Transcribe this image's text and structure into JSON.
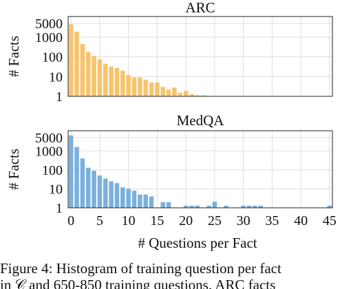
{
  "chart_data": [
    {
      "type": "bar",
      "title": "ARC",
      "ylabel": "# Facts",
      "xlabel": "",
      "yscale": "log",
      "ylim": [
        1,
        5000
      ],
      "yticks": [
        "5000",
        "1000",
        "100",
        "10",
        "1"
      ],
      "xlim": [
        -0.5,
        45.5
      ],
      "grid": true,
      "color": "#f7c46c",
      "x": [
        0,
        1,
        2,
        3,
        4,
        5,
        6,
        7,
        8,
        9,
        10,
        11,
        12,
        13,
        14,
        15,
        16,
        17,
        18,
        19,
        20,
        21,
        22,
        23
      ],
      "values": [
        4500,
        1900,
        450,
        180,
        110,
        75,
        45,
        32,
        28,
        20,
        12,
        9,
        9,
        7,
        5,
        5,
        3,
        2.2,
        2.8,
        1.5,
        1.9,
        1.3,
        1,
        1
      ]
    },
    {
      "type": "bar",
      "title": "MedQA",
      "ylabel": "# Facts",
      "xlabel": "# Questions per Fact",
      "yscale": "log",
      "ylim": [
        1,
        5000
      ],
      "yticks": [
        "5000",
        "1000",
        "100",
        "10",
        "1"
      ],
      "xticks": [
        "0",
        "5",
        "10",
        "15",
        "20",
        "25",
        "30",
        "35",
        "40",
        "45"
      ],
      "xlim": [
        -0.5,
        45.5
      ],
      "grid": true,
      "color": "#7ab0dc",
      "x": [
        0,
        1,
        2,
        3,
        4,
        5,
        6,
        7,
        8,
        9,
        10,
        11,
        12,
        13,
        14,
        16,
        17,
        20,
        21,
        22,
        24,
        25,
        27,
        30,
        31,
        32,
        33,
        45
      ],
      "values": [
        6500,
        1600,
        400,
        130,
        90,
        50,
        35,
        25,
        20,
        12,
        10,
        8,
        5,
        5,
        4,
        2,
        2,
        1.3,
        1.3,
        1.3,
        1.3,
        2.1,
        1.3,
        1.3,
        1.3,
        1.3,
        1.3,
        1.3
      ]
    }
  ],
  "caption": {
    "line1": "Figure 4: Histogram of training question per fact",
    "line2": "in 𝒞 and 650-850 training questions. ARC facts"
  }
}
